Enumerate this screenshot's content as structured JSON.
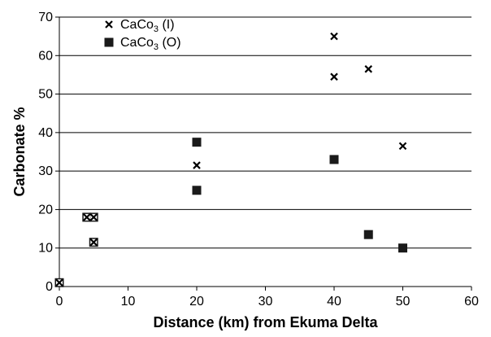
{
  "chart_data": {
    "type": "scatter",
    "xlabel": "Distance (km) from Ekuma Delta",
    "ylabel": "Carbonate %",
    "xlim": [
      0,
      60
    ],
    "ylim": [
      0,
      70
    ],
    "xticks": [
      0,
      10,
      20,
      30,
      40,
      50,
      60
    ],
    "yticks": [
      0,
      10,
      20,
      30,
      40,
      50,
      60,
      70
    ],
    "grid": "horizontal",
    "legend_position": "top-left",
    "series": [
      {
        "name": "CaCo3 (I)",
        "legend": {
          "base": "CaCo",
          "sub": "3",
          "suffix": " (I)"
        },
        "marker": "x",
        "color": "#000000",
        "points": [
          {
            "x": 0,
            "y": 1
          },
          {
            "x": 4,
            "y": 18
          },
          {
            "x": 5,
            "y": 18
          },
          {
            "x": 5,
            "y": 11.5
          },
          {
            "x": 20,
            "y": 31.5
          },
          {
            "x": 40,
            "y": 65
          },
          {
            "x": 40,
            "y": 54.5
          },
          {
            "x": 45,
            "y": 56.5
          },
          {
            "x": 50,
            "y": 36.5
          }
        ]
      },
      {
        "name": "CaCo3 (O)",
        "legend": {
          "base": "CaCo",
          "sub": "3",
          "suffix": " (O)"
        },
        "marker": "square",
        "color": "#1a1a1a",
        "points": [
          {
            "x": 0,
            "y": 1
          },
          {
            "x": 4,
            "y": 18
          },
          {
            "x": 5,
            "y": 18
          },
          {
            "x": 5,
            "y": 11.5
          },
          {
            "x": 20,
            "y": 37.5
          },
          {
            "x": 20,
            "y": 25
          },
          {
            "x": 40,
            "y": 33
          },
          {
            "x": 45,
            "y": 13.5
          },
          {
            "x": 50,
            "y": 10
          }
        ]
      }
    ]
  }
}
